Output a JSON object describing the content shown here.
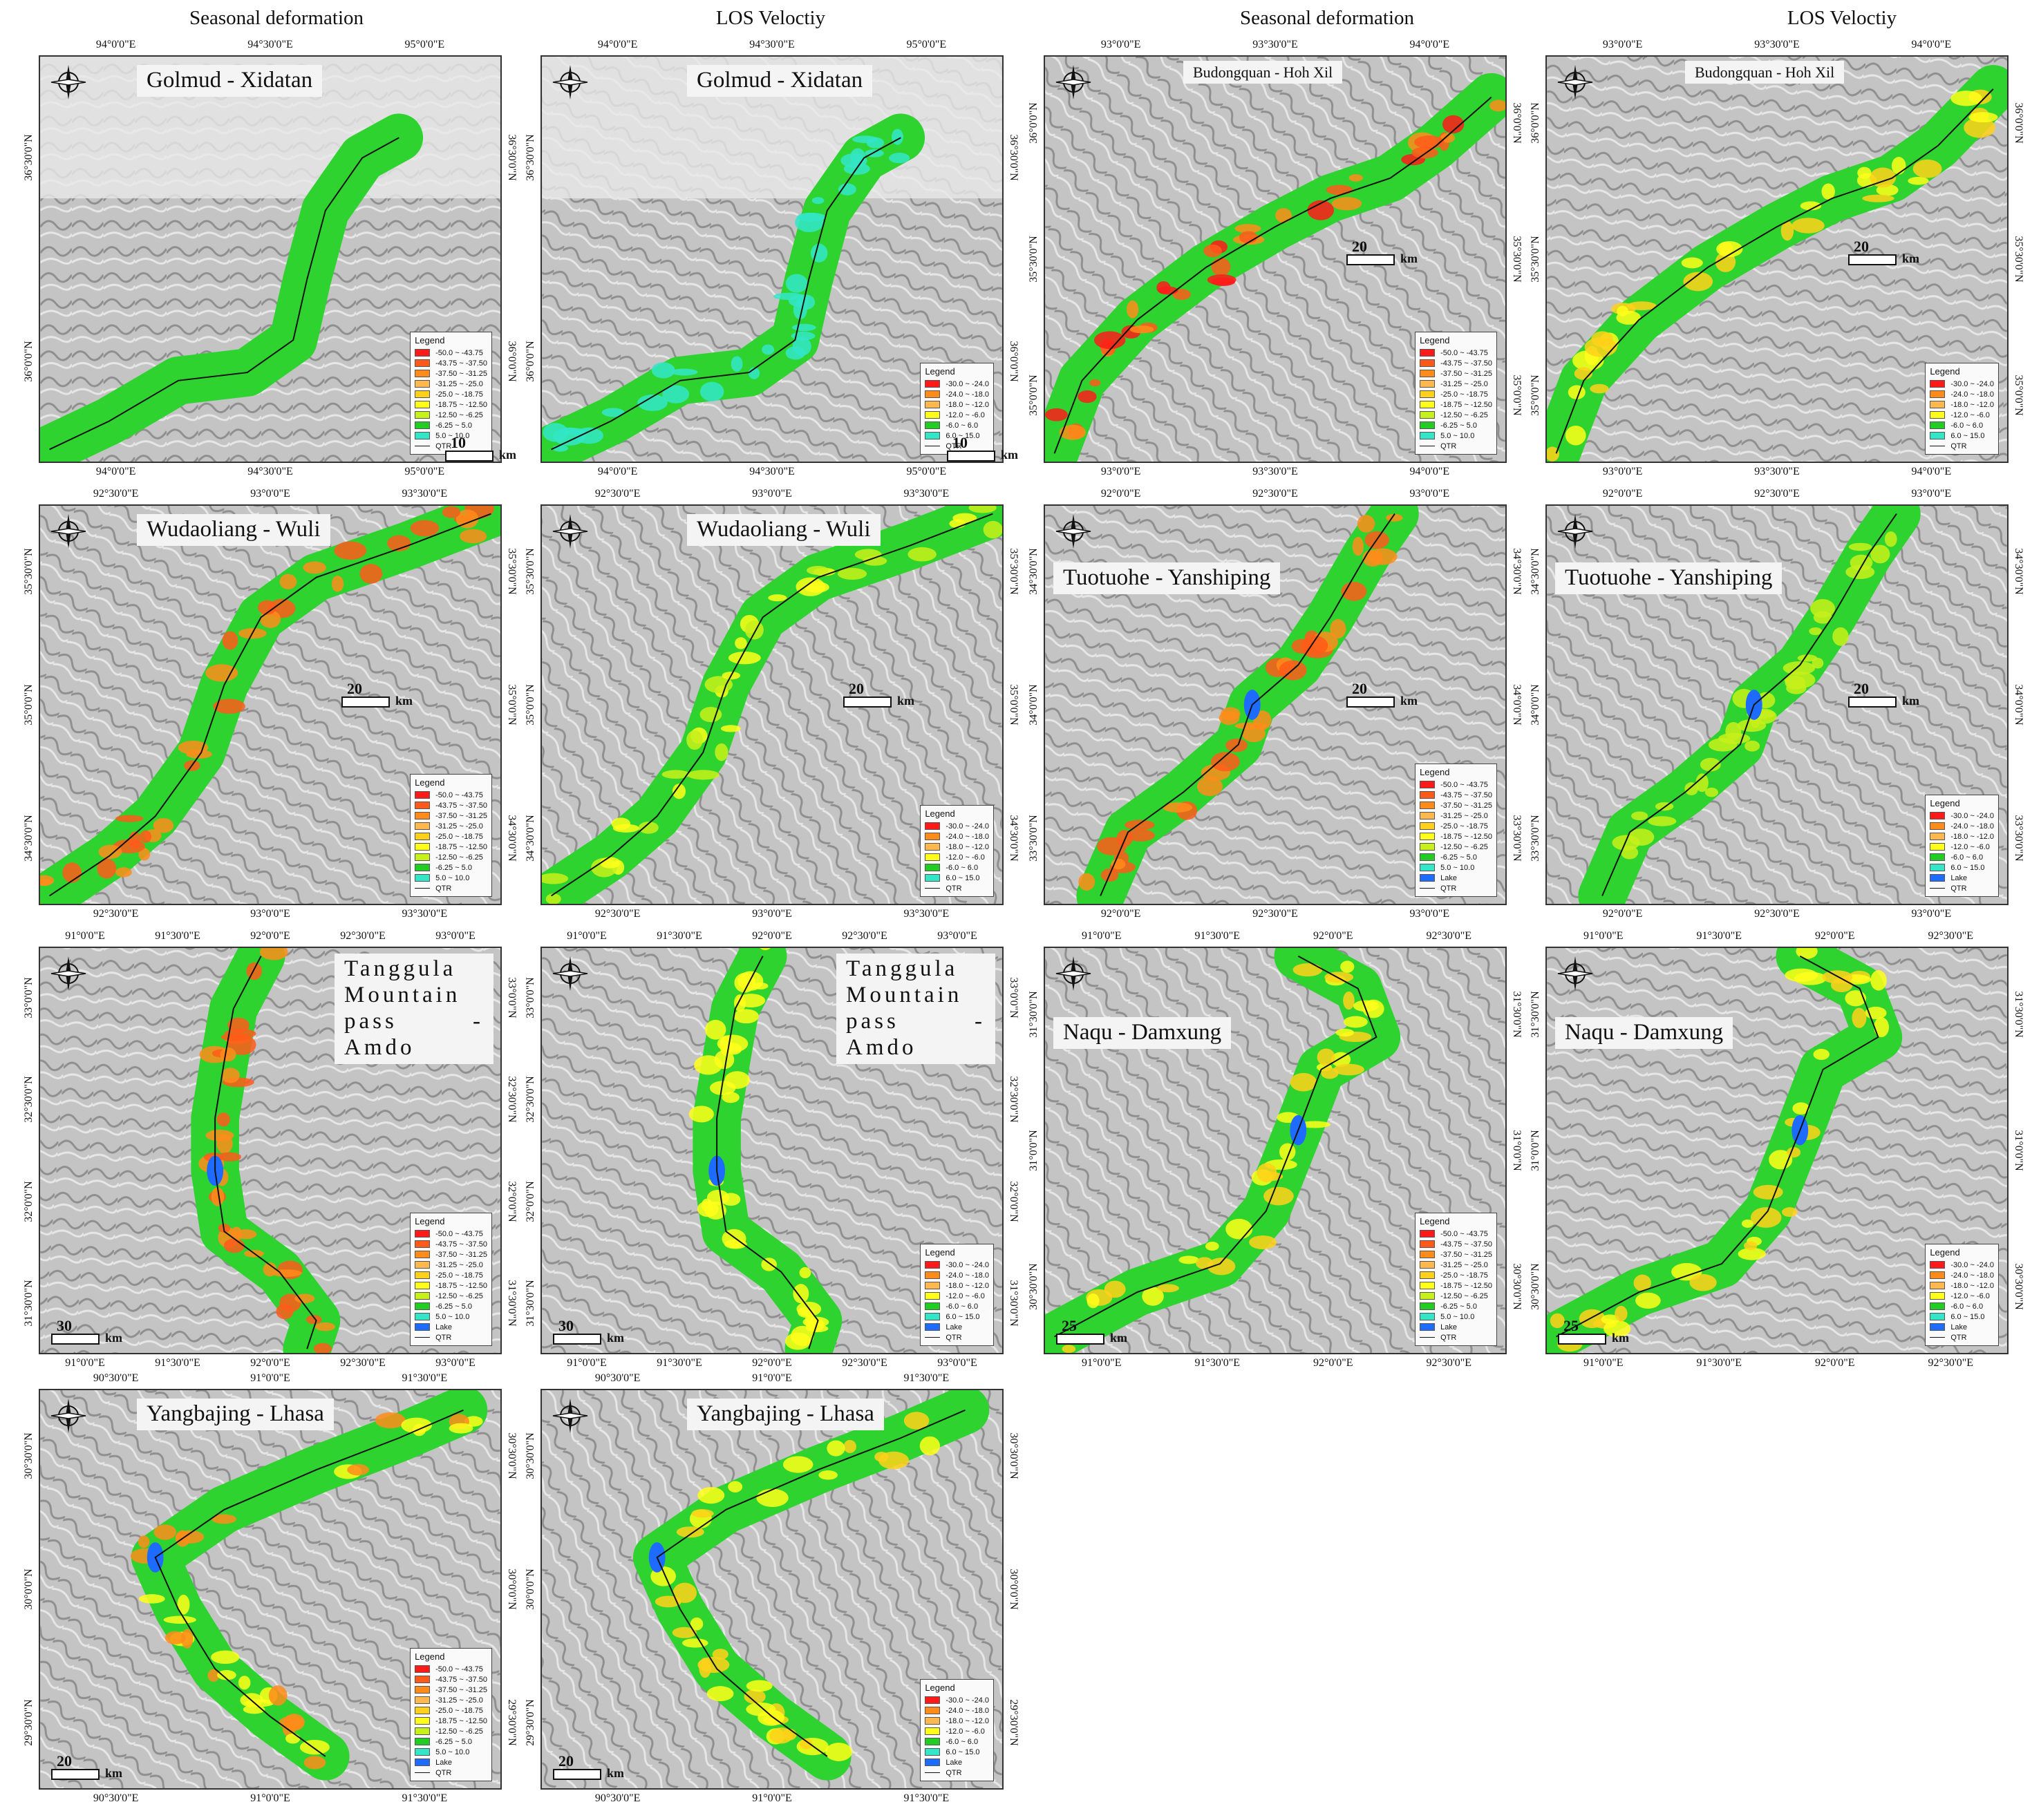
{
  "column_headers": [
    "Seasonal deformation",
    "LOS Veloctiy",
    "Seasonal deformation",
    "LOS Veloctiy"
  ],
  "colors": {
    "c1": "#ff1a1a",
    "c2": "#ff5a1a",
    "c3": "#ff8c1a",
    "c4": "#ffb84d",
    "c5": "#ffd11a",
    "c6": "#ffff1a",
    "c7": "#c8f01a",
    "c8": "#22cc22",
    "c9": "#33e6c8",
    "lake": "#1e6bff",
    "band": "#2fd32f"
  },
  "legends": {
    "seasonal": {
      "title": "Legend",
      "items": [
        "-50.0 ~ -43.75",
        "-43.75 ~ -37.50",
        "-37.50 ~ -31.25",
        "-31.25 ~ -25.0",
        "-25.0 ~ -18.75",
        "-18.75 ~ -12.50",
        "-12.50 ~ -6.25",
        "-6.25 ~ 5.0",
        "5.0 ~ 10.0"
      ],
      "lake": "Lake",
      "route": "QTR"
    },
    "los": {
      "title": "Legend",
      "items": [
        "-30.0 ~ -24.0",
        "-24.0 ~ -18.0",
        "-18.0 ~ -12.0",
        "-12.0 ~ -6.0",
        "-6.0 ~ 6.0",
        "6.0 ~ 15.0"
      ],
      "lake": "Lake",
      "route": "QTR"
    }
  },
  "panels": [
    {
      "id": "golmud-seasonal",
      "title": "Golmud - Xidatan",
      "legend": "seasonal",
      "lake": false,
      "scale": "10",
      "top": [
        "94°0'0\"E",
        "94°30'0\"E",
        "95°0'0\"E"
      ],
      "bottom": [
        "94°0'0\"E",
        "94°30'0\"E",
        "95°0'0\"E"
      ],
      "left": [
        "36°30'0\"N",
        "36°0'0\"N"
      ],
      "right": [
        "36°30'0\"N",
        "36°0'0\"N"
      ]
    },
    {
      "id": "golmud-los",
      "title": "Golmud - Xidatan",
      "legend": "los",
      "lake": false,
      "scale": "10",
      "top": [
        "94°0'0\"E",
        "94°30'0\"E",
        "95°0'0\"E"
      ],
      "bottom": [
        "94°0'0\"E",
        "94°30'0\"E",
        "95°0'0\"E"
      ],
      "left": [
        "36°30'0\"N",
        "36°0'0\"N"
      ],
      "right": [
        "36°30'0\"N",
        "36°0'0\"N"
      ]
    },
    {
      "id": "budongquan-seasonal",
      "title": "Budongquan - Hoh Xil",
      "legend": "seasonal",
      "lake": false,
      "scale": "20",
      "top": [
        "93°0'0\"E",
        "93°30'0\"E",
        "94°0'0\"E"
      ],
      "bottom": [
        "93°0'0\"E",
        "93°30'0\"E",
        "94°0'0\"E"
      ],
      "left": [
        "36°0'0\"N",
        "35°30'0\"N",
        "35°0'0\"N"
      ],
      "right": [
        "36°0'0\"N",
        "35°30'0\"N",
        "35°0'0\"N"
      ]
    },
    {
      "id": "budongquan-los",
      "title": "Budongquan - Hoh Xil",
      "legend": "los",
      "lake": false,
      "scale": "20",
      "top": [
        "93°0'0\"E",
        "93°30'0\"E",
        "94°0'0\"E"
      ],
      "bottom": [
        "93°0'0\"E",
        "93°30'0\"E",
        "94°0'0\"E"
      ],
      "left": [
        "36°0'0\"N",
        "35°30'0\"N",
        "35°0'0\"N"
      ],
      "right": [
        "36°0'0\"N",
        "35°30'0\"N",
        "35°0'0\"N"
      ]
    },
    {
      "id": "wudaoliang-seasonal",
      "title": "Wudaoliang - Wuli",
      "legend": "seasonal",
      "lake": false,
      "scale": "20",
      "top": [
        "92°30'0\"E",
        "93°0'0\"E",
        "93°30'0\"E"
      ],
      "bottom": [
        "92°30'0\"E",
        "93°0'0\"E",
        "93°30'0\"E"
      ],
      "left": [
        "35°30'0\"N",
        "35°0'0\"N",
        "34°30'0\"N"
      ],
      "right": [
        "35°30'0\"N",
        "35°0'0\"N",
        "34°30'0\"N"
      ]
    },
    {
      "id": "wudaoliang-los",
      "title": "Wudaoliang - Wuli",
      "legend": "los",
      "lake": false,
      "scale": "20",
      "top": [
        "92°30'0\"E",
        "93°0'0\"E",
        "93°30'0\"E"
      ],
      "bottom": [
        "92°30'0\"E",
        "93°0'0\"E",
        "93°30'0\"E"
      ],
      "left": [
        "35°30'0\"N",
        "35°0'0\"N",
        "34°30'0\"N"
      ],
      "right": [
        "35°30'0\"N",
        "35°0'0\"N",
        "34°30'0\"N"
      ]
    },
    {
      "id": "tuotuohe-seasonal",
      "title": "Tuotuohe - Yanshiping",
      "legend": "seasonal",
      "lake": true,
      "scale": "20",
      "top": [
        "92°0'0\"E",
        "92°30'0\"E",
        "93°0'0\"E"
      ],
      "bottom": [
        "92°0'0\"E",
        "92°30'0\"E",
        "93°0'0\"E"
      ],
      "left": [
        "34°30'0\"N",
        "34°0'0\"N",
        "33°30'0\"N"
      ],
      "right": [
        "34°30'0\"N",
        "34°0'0\"N",
        "33°30'0\"N"
      ]
    },
    {
      "id": "tuotuohe-los",
      "title": "Tuotuohe - Yanshiping",
      "legend": "los",
      "lake": true,
      "scale": "20",
      "top": [
        "92°0'0\"E",
        "92°30'0\"E",
        "93°0'0\"E"
      ],
      "bottom": [
        "92°0'0\"E",
        "92°30'0\"E",
        "93°0'0\"E"
      ],
      "left": [
        "34°30'0\"N",
        "34°0'0\"N",
        "33°30'0\"N"
      ],
      "right": [
        "34°30'0\"N",
        "34°0'0\"N",
        "33°30'0\"N"
      ]
    },
    {
      "id": "tanggula-seasonal",
      "title": "Tanggula Mountain pass - Amdo",
      "legend": "seasonal",
      "lake": true,
      "scale": "30",
      "top": [
        "91°0'0\"E",
        "91°30'0\"E",
        "92°0'0\"E",
        "92°30'0\"E",
        "93°0'0\"E"
      ],
      "bottom": [
        "91°0'0\"E",
        "91°30'0\"E",
        "92°0'0\"E",
        "92°30'0\"E",
        "93°0'0\"E"
      ],
      "left": [
        "33°0'0\"N",
        "32°30'0\"N",
        "32°0'0\"N",
        "31°30'0\"N"
      ],
      "right": [
        "33°0'0\"N",
        "32°30'0\"N",
        "32°0'0\"N",
        "31°30'0\"N"
      ]
    },
    {
      "id": "tanggula-los",
      "title": "Tanggula Mountain pass - Amdo",
      "legend": "los",
      "lake": true,
      "scale": "30",
      "top": [
        "91°0'0\"E",
        "91°30'0\"E",
        "92°0'0\"E",
        "92°30'0\"E",
        "93°0'0\"E"
      ],
      "bottom": [
        "91°0'0\"E",
        "91°30'0\"E",
        "92°0'0\"E",
        "92°30'0\"E",
        "93°0'0\"E"
      ],
      "left": [
        "33°0'0\"N",
        "32°30'0\"N",
        "32°0'0\"N",
        "31°30'0\"N"
      ],
      "right": [
        "33°0'0\"N",
        "32°30'0\"N",
        "32°0'0\"N",
        "31°30'0\"N"
      ]
    },
    {
      "id": "naqu-seasonal",
      "title": "Naqu - Damxung",
      "legend": "seasonal",
      "lake": true,
      "scale": "25",
      "top": [
        "91°0'0\"E",
        "91°30'0\"E",
        "92°0'0\"E",
        "92°30'0\"E"
      ],
      "bottom": [
        "91°0'0\"E",
        "91°30'0\"E",
        "92°0'0\"E",
        "92°30'0\"E"
      ],
      "left": [
        "31°30'0\"N",
        "31°0'0\"N",
        "30°30'0\"N"
      ],
      "right": [
        "31°30'0\"N",
        "31°0'0\"N",
        "30°30'0\"N"
      ]
    },
    {
      "id": "naqu-los",
      "title": "Naqu - Damxung",
      "legend": "los",
      "lake": true,
      "scale": "25",
      "top": [
        "91°0'0\"E",
        "91°30'0\"E",
        "92°0'0\"E",
        "92°30'0\"E"
      ],
      "bottom": [
        "91°0'0\"E",
        "91°30'0\"E",
        "92°0'0\"E",
        "92°30'0\"E"
      ],
      "left": [
        "31°30'0\"N",
        "31°0'0\"N",
        "30°30'0\"N"
      ],
      "right": [
        "31°30'0\"N",
        "31°0'0\"N",
        "30°30'0\"N"
      ]
    },
    {
      "id": "yangbajing-seasonal",
      "title": "Yangbajing - Lhasa",
      "legend": "seasonal",
      "lake": true,
      "scale": "20",
      "top": [
        "90°30'0\"E",
        "91°0'0\"E",
        "91°30'0\"E"
      ],
      "bottom": [
        "90°30'0\"E",
        "91°0'0\"E",
        "91°30'0\"E"
      ],
      "left": [
        "30°30'0\"N",
        "30°0'0\"N",
        "29°30'0\"N"
      ],
      "right": [
        "30°30'0\"N",
        "30°0'0\"N",
        "29°30'0\"N"
      ]
    },
    {
      "id": "yangbajing-los",
      "title": "Yangbajing - Lhasa",
      "legend": "los",
      "lake": true,
      "scale": "20",
      "top": [
        "90°30'0\"E",
        "91°0'0\"E",
        "91°30'0\"E"
      ],
      "bottom": [
        "90°30'0\"E",
        "91°0'0\"E",
        "91°30'0\"E"
      ],
      "left": [
        "30°30'0\"N",
        "30°0'0\"N",
        "29°30'0\"N"
      ],
      "right": [
        "30°30'0\"N",
        "30°0'0\"N",
        "29°30'0\"N"
      ]
    }
  ],
  "scale_unit": "km"
}
